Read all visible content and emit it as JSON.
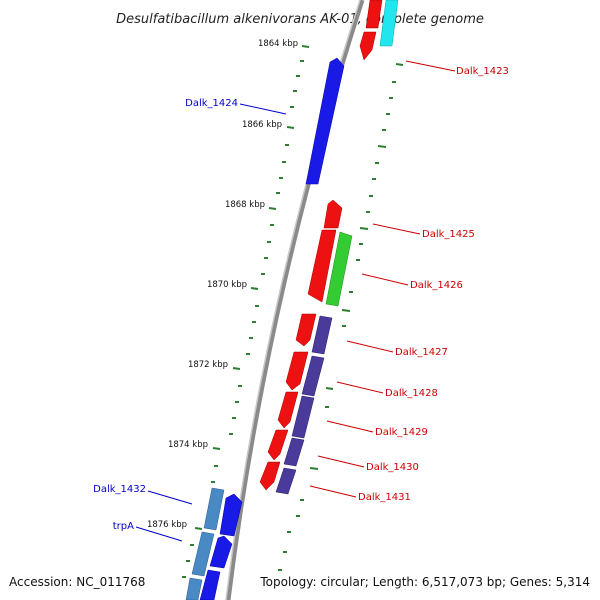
{
  "title": "Desulfatibacillum alkenivorans AK-01, complete genome",
  "footer": {
    "accession": "Accession: NC_011768",
    "summary": "Topology: circular; Length: 6,517,073 bp; Genes: 5,314"
  },
  "colors": {
    "backbone": "#8a8a8a",
    "tick": "#2e7d32",
    "forward_label": "#0000cc",
    "reverse_label": "#cc0000"
  },
  "ticks": [
    "1864 kbp",
    "1866 kbp",
    "1868 kbp",
    "1870 kbp",
    "1872 kbp",
    "1874 kbp",
    "1876 kbp"
  ],
  "genes": [
    {
      "label": "Dalk_1423",
      "color": "red"
    },
    {
      "label": "Dalk_1424",
      "color": "blue"
    },
    {
      "label": "Dalk_1425",
      "color": "red"
    },
    {
      "label": "Dalk_1426",
      "color": "red"
    },
    {
      "label": "Dalk_1427",
      "color": "red"
    },
    {
      "label": "Dalk_1428",
      "color": "red"
    },
    {
      "label": "Dalk_1429",
      "color": "red"
    },
    {
      "label": "Dalk_1430",
      "color": "red"
    },
    {
      "label": "Dalk_1431",
      "color": "red"
    },
    {
      "label": "Dalk_1432",
      "color": "blue"
    },
    {
      "label": "trpA",
      "color": "blue"
    }
  ]
}
